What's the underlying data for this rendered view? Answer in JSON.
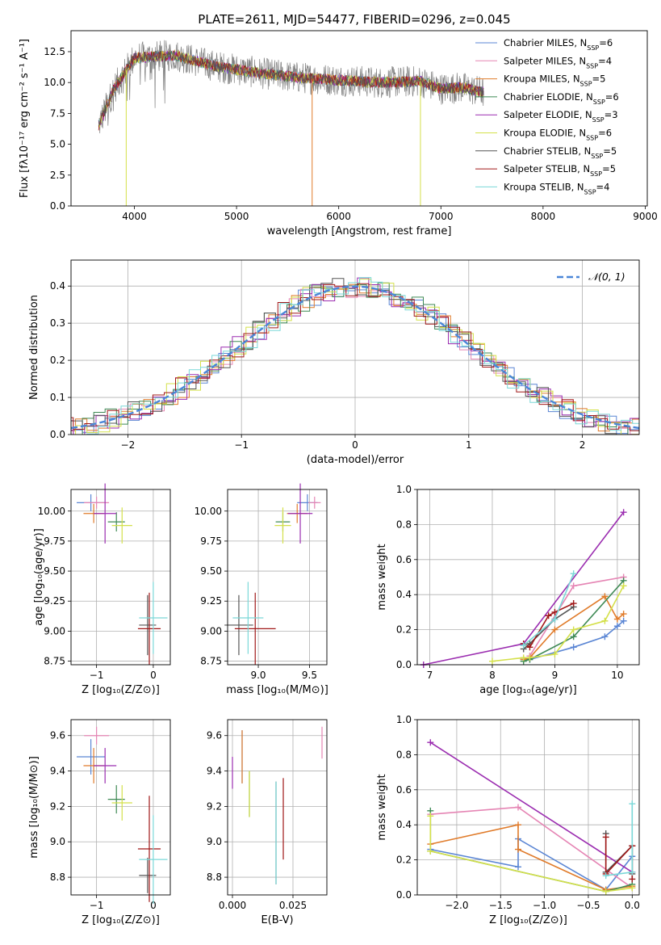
{
  "figure": {
    "title": "PLATE=2611, MJD=54477, FIBERID=0296, z=0.045"
  },
  "models": [
    {
      "name": "Chabrier MILES, N",
      "nssp": "=6",
      "color": "#5b86d4"
    },
    {
      "name": "Salpeter MILES, N",
      "nssp": "=4",
      "color": "#e585b4"
    },
    {
      "name": "Kroupa MILES, N",
      "nssp": "=5",
      "color": "#e07b2a"
    },
    {
      "name": "Chabrier ELODIE, N",
      "nssp": "=6",
      "color": "#3f8a55"
    },
    {
      "name": "Salpeter ELODIE, N",
      "nssp": "=3",
      "color": "#9b2db0"
    },
    {
      "name": "Kroupa ELODIE, N",
      "nssp": "=6",
      "color": "#d4e04a"
    },
    {
      "name": "Chabrier STELIB, N",
      "nssp": "=5",
      "color": "#555555"
    },
    {
      "name": "Salpeter STELIB, N",
      "nssp": "=5",
      "color": "#a01818"
    },
    {
      "name": "Kroupa STELIB, N",
      "nssp": "=4",
      "color": "#7ad8d8"
    }
  ],
  "chart_data": [
    {
      "id": "spectrum",
      "type": "line",
      "xlabel": "wavelength [Angstrom, rest frame]",
      "ylabel": "Flux [fλ10⁻¹⁷ erg cm⁻² s⁻¹ A⁻¹]",
      "xlim": [
        3380,
        9020
      ],
      "ylim": [
        0,
        14.2
      ],
      "xticks": [
        4000,
        5000,
        6000,
        7000,
        8000,
        9000
      ],
      "yticks": [
        0.0,
        2.5,
        5.0,
        7.5,
        10.0,
        12.5
      ],
      "x_range": [
        3650,
        7420
      ],
      "approx_continuum": [
        [
          3650,
          6.5
        ],
        [
          3800,
          9.5
        ],
        [
          4000,
          12.0
        ],
        [
          4400,
          12.2
        ],
        [
          4800,
          11.3
        ],
        [
          5200,
          10.8
        ],
        [
          5600,
          10.4
        ],
        [
          6000,
          10.2
        ],
        [
          6400,
          10.0
        ],
        [
          6800,
          10.1
        ],
        [
          7000,
          9.5
        ],
        [
          7200,
          9.6
        ],
        [
          7420,
          9.2
        ]
      ]
    },
    {
      "id": "residuals",
      "type": "line",
      "xlabel": "(data-model)/error",
      "ylabel": "Normed distribution",
      "xlim": [
        -2.5,
        2.5
      ],
      "ylim": [
        0,
        0.47
      ],
      "xticks": [
        -2,
        -1,
        0,
        1,
        2
      ],
      "yticks": [
        0.0,
        0.1,
        0.2,
        0.3,
        0.4
      ],
      "series": [
        {
          "name": "𝒩(0, 1)",
          "mean": 0,
          "sigma": 1
        }
      ],
      "hist_bin_width": 0.1
    },
    {
      "id": "age_vs_Z",
      "type": "scatter",
      "xlabel": "Z [log₁₀(Z/Z⊙)]",
      "ylabel": "age  [log₁₀(age/yr)]",
      "xlim": [
        -1.45,
        0.3
      ],
      "ylim": [
        8.72,
        10.18
      ],
      "xticks": [
        -1,
        0
      ],
      "yticks": [
        8.75,
        9.0,
        9.25,
        9.5,
        9.75,
        10.0
      ],
      "points": [
        {
          "model": 0,
          "x": -1.1,
          "xerr": 0.25,
          "y": 10.07,
          "yerr": 0.07
        },
        {
          "model": 1,
          "x": -1.0,
          "xerr": 0.22,
          "y": 10.07,
          "yerr": 0.05
        },
        {
          "model": 2,
          "x": -1.05,
          "xerr": 0.18,
          "y": 9.98,
          "yerr": 0.08
        },
        {
          "model": 3,
          "x": -0.65,
          "xerr": 0.15,
          "y": 9.91,
          "yerr": 0.08
        },
        {
          "model": 4,
          "x": -0.85,
          "xerr": 0.2,
          "y": 9.98,
          "yerr": 0.25
        },
        {
          "model": 5,
          "x": -0.55,
          "xerr": 0.18,
          "y": 9.88,
          "yerr": 0.15
        },
        {
          "model": 6,
          "x": -0.1,
          "xerr": 0.15,
          "y": 9.05,
          "yerr": 0.25
        },
        {
          "model": 7,
          "x": -0.07,
          "xerr": 0.2,
          "y": 9.02,
          "yerr": 0.3
        },
        {
          "model": 8,
          "x": 0.0,
          "xerr": 0.25,
          "y": 9.11,
          "yerr": 0.3
        }
      ]
    },
    {
      "id": "age_vs_mass",
      "type": "scatter",
      "xlabel": "mass [log₁₀(M/M⊙)]",
      "xlim": [
        8.7,
        9.67
      ],
      "ylim": [
        8.72,
        10.18
      ],
      "xticks": [
        9.0,
        9.5
      ],
      "yticks": [
        8.75,
        9.0,
        9.25,
        9.5,
        9.75,
        10.0
      ],
      "points": [
        {
          "model": 0,
          "x": 9.48,
          "xerr": 0.1,
          "y": 10.07,
          "yerr": 0.07
        },
        {
          "model": 1,
          "x": 9.55,
          "xerr": 0.06,
          "y": 10.07,
          "yerr": 0.05
        },
        {
          "model": 2,
          "x": 9.38,
          "xerr": 0.1,
          "y": 9.98,
          "yerr": 0.08
        },
        {
          "model": 3,
          "x": 9.24,
          "xerr": 0.07,
          "y": 9.91,
          "yerr": 0.08
        },
        {
          "model": 4,
          "x": 9.41,
          "xerr": 0.12,
          "y": 9.98,
          "yerr": 0.25
        },
        {
          "model": 5,
          "x": 9.24,
          "xerr": 0.08,
          "y": 9.88,
          "yerr": 0.15
        },
        {
          "model": 6,
          "x": 8.81,
          "xerr": 0.14,
          "y": 9.05,
          "yerr": 0.25
        },
        {
          "model": 7,
          "x": 8.97,
          "xerr": 0.2,
          "y": 9.02,
          "yerr": 0.3
        },
        {
          "model": 8,
          "x": 8.9,
          "xerr": 0.15,
          "y": 9.11,
          "yerr": 0.3
        }
      ]
    },
    {
      "id": "massweight_vs_age",
      "type": "line",
      "xlabel": "age  [log₁₀(age/yr)]",
      "ylabel": "mass weight",
      "xlim": [
        6.8,
        10.35
      ],
      "ylim": [
        0,
        1.0
      ],
      "xticks": [
        7,
        8,
        9,
        10
      ],
      "yticks": [
        0.0,
        0.2,
        0.4,
        0.6,
        0.8,
        1.0
      ],
      "series": [
        {
          "model": 0,
          "x": [
            8.5,
            8.6,
            9.3,
            9.8,
            10.0,
            10.1
          ],
          "values": [
            0.03,
            0.03,
            0.1,
            0.16,
            0.22,
            0.25
          ]
        },
        {
          "model": 1,
          "x": [
            8.6,
            9.3,
            10.1
          ],
          "values": [
            0.05,
            0.45,
            0.5
          ]
        },
        {
          "model": 2,
          "x": [
            8.5,
            8.6,
            9.0,
            9.8,
            10.0,
            10.1
          ],
          "values": [
            0.03,
            0.04,
            0.2,
            0.39,
            0.26,
            0.29
          ]
        },
        {
          "model": 3,
          "x": [
            8.5,
            8.6,
            9.3,
            10.1
          ],
          "values": [
            0.02,
            0.03,
            0.16,
            0.48
          ]
        },
        {
          "model": 4,
          "x": [
            6.9,
            8.5,
            10.1
          ],
          "values": [
            0.0,
            0.12,
            0.87
          ]
        },
        {
          "model": 5,
          "x": [
            8.0,
            8.5,
            8.6,
            9.0,
            9.3,
            9.8,
            10.1
          ],
          "values": [
            0.02,
            0.04,
            0.04,
            0.06,
            0.2,
            0.25,
            0.45
          ]
        },
        {
          "model": 6,
          "x": [
            8.5,
            8.6,
            9.0,
            9.3
          ],
          "values": [
            0.09,
            0.12,
            0.26,
            0.33
          ]
        },
        {
          "model": 7,
          "x": [
            8.5,
            8.6,
            8.9,
            9.0,
            9.3
          ],
          "values": [
            0.12,
            0.1,
            0.28,
            0.3,
            0.35
          ]
        },
        {
          "model": 8,
          "x": [
            8.5,
            9.0,
            9.3
          ],
          "values": [
            0.11,
            0.26,
            0.52
          ]
        }
      ]
    },
    {
      "id": "mass_vs_Z",
      "type": "scatter",
      "xlabel": "Z [log₁₀(Z/Z⊙)]",
      "ylabel": "mass [log₁₀(M/M⊙)]",
      "xlim": [
        -1.45,
        0.3
      ],
      "ylim": [
        8.7,
        9.69
      ],
      "xticks": [
        -1,
        0
      ],
      "yticks": [
        8.8,
        9.0,
        9.2,
        9.4,
        9.6
      ],
      "points": [
        {
          "model": 0,
          "x": -1.1,
          "xerr": 0.25,
          "y": 9.48,
          "yerr": 0.1
        },
        {
          "model": 1,
          "x": -1.0,
          "xerr": 0.22,
          "y": 9.6,
          "yerr": 0.05
        },
        {
          "model": 2,
          "x": -1.05,
          "xerr": 0.18,
          "y": 9.43,
          "yerr": 0.1
        },
        {
          "model": 3,
          "x": -0.65,
          "xerr": 0.15,
          "y": 9.24,
          "yerr": 0.08
        },
        {
          "model": 4,
          "x": -0.85,
          "xerr": 0.2,
          "y": 9.43,
          "yerr": 0.1
        },
        {
          "model": 5,
          "x": -0.55,
          "xerr": 0.18,
          "y": 9.22,
          "yerr": 0.1
        },
        {
          "model": 6,
          "x": -0.1,
          "xerr": 0.15,
          "y": 8.81,
          "yerr": 0.1
        },
        {
          "model": 7,
          "x": -0.07,
          "xerr": 0.2,
          "y": 8.96,
          "yerr": 0.3
        },
        {
          "model": 8,
          "x": 0.0,
          "xerr": 0.25,
          "y": 8.9,
          "yerr": 0.25
        }
      ]
    },
    {
      "id": "mass_vs_ebv",
      "type": "scatter",
      "xlabel": "E(B-V)",
      "xlim": [
        -0.002,
        0.039
      ],
      "ylim": [
        8.7,
        9.69
      ],
      "xticks": [
        0.0,
        0.025
      ],
      "yticks": [
        8.8,
        9.0,
        9.2,
        9.4,
        9.6
      ],
      "points": [
        {
          "model": 0,
          "x": 0.004,
          "y": 9.48,
          "yerr": 0.15
        },
        {
          "model": 1,
          "x": 0.037,
          "y": 9.56,
          "yerr": 0.09
        },
        {
          "model": 2,
          "x": 0.004,
          "y": 9.48,
          "yerr": 0.15
        },
        {
          "model": 3,
          "x": 0.007,
          "y": 9.27,
          "yerr": 0.13
        },
        {
          "model": 4,
          "x": 0.0,
          "y": 9.39,
          "yerr": 0.09
        },
        {
          "model": 5,
          "x": 0.007,
          "y": 9.27,
          "yerr": 0.13
        },
        {
          "model": 6,
          "x": 0.018,
          "y": 9.05,
          "yerr": 0.29
        },
        {
          "model": 7,
          "x": 0.021,
          "y": 9.13,
          "yerr": 0.23
        },
        {
          "model": 8,
          "x": 0.018,
          "y": 9.05,
          "yerr": 0.29
        }
      ]
    },
    {
      "id": "massweight_vs_Z",
      "type": "line",
      "xlabel": "Z [log₁₀(Z/Z⊙)]",
      "ylabel": "mass weight",
      "xlim": [
        -2.45,
        0.08
      ],
      "ylim": [
        0,
        1.0
      ],
      "xticks": [
        -2.0,
        -1.5,
        -1.0,
        -0.5,
        0.0
      ],
      "yticks": [
        0.0,
        0.2,
        0.4,
        0.6,
        0.8,
        1.0
      ],
      "series": [
        {
          "model": 0,
          "x": [
            -2.3,
            -1.3,
            -1.3,
            -0.3,
            0.0
          ],
          "values": [
            0.26,
            0.16,
            0.32,
            0.03,
            0.22
          ]
        },
        {
          "model": 1,
          "x": [
            -2.3,
            -1.3,
            0.0
          ],
          "values": [
            0.46,
            0.5,
            0.04
          ]
        },
        {
          "model": 2,
          "x": [
            -2.3,
            -1.3,
            -1.3,
            -0.3,
            0.0
          ],
          "values": [
            0.29,
            0.4,
            0.26,
            0.03,
            0.05
          ]
        },
        {
          "model": 3,
          "x": [
            -2.3,
            -2.3,
            -0.3,
            0.0
          ],
          "values": [
            0.48,
            0.25,
            0.02,
            0.06
          ]
        },
        {
          "model": 4,
          "x": [
            -2.3,
            0.0
          ],
          "values": [
            0.87,
            0.13
          ]
        },
        {
          "model": 5,
          "x": [
            -2.3,
            -2.3,
            -0.3,
            0.0
          ],
          "values": [
            0.45,
            0.25,
            0.02,
            0.04
          ]
        },
        {
          "model": 6,
          "x": [
            -0.3,
            -0.3,
            0.0,
            0.0
          ],
          "values": [
            0.35,
            0.13,
            0.28,
            0.12
          ]
        },
        {
          "model": 7,
          "x": [
            -0.3,
            -0.3,
            0.0,
            0.0
          ],
          "values": [
            0.33,
            0.12,
            0.28,
            0.09
          ]
        },
        {
          "model": 8,
          "x": [
            -0.3,
            0.0,
            0.0
          ],
          "values": [
            0.11,
            0.13,
            0.52
          ]
        }
      ]
    }
  ]
}
